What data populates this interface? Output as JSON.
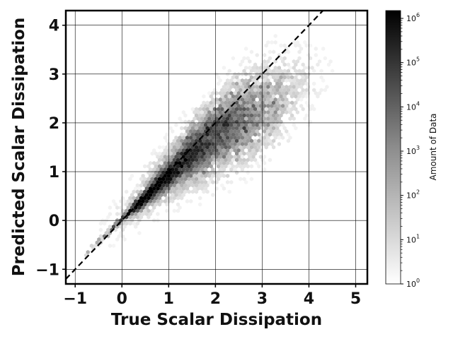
{
  "chart_data": {
    "type": "heatmap",
    "subtype": "hexbin",
    "title": "",
    "xlabel": "True Scalar Dissipation",
    "ylabel": "Predicted Scalar Dissipation",
    "xlim": [
      -1.2,
      5.25
    ],
    "ylim": [
      -1.3,
      4.3
    ],
    "xticks": [
      -1,
      0,
      1,
      2,
      3,
      4,
      5
    ],
    "yticks": [
      -1,
      0,
      1,
      2,
      3,
      4
    ],
    "x_tick_labels": [
      "−1",
      "0",
      "1",
      "2",
      "3",
      "4",
      "5"
    ],
    "y_tick_labels": [
      "−1",
      "0",
      "1",
      "2",
      "3",
      "4"
    ],
    "grid": true,
    "reference_line": {
      "style": "dashed",
      "color": "#000000",
      "slope": 1,
      "intercept": 0
    },
    "colorbar": {
      "label": "Amount of Data",
      "scale": "log",
      "range": [
        1,
        1500000
      ],
      "ticks": [
        {
          "base": "10",
          "exp": "0"
        },
        {
          "base": "10",
          "exp": "1"
        },
        {
          "base": "10",
          "exp": "2"
        },
        {
          "base": "10",
          "exp": "3"
        },
        {
          "base": "10",
          "exp": "4"
        },
        {
          "base": "10",
          "exp": "5"
        },
        {
          "base": "10",
          "exp": "6"
        }
      ],
      "colormap": "gray_r"
    },
    "density_estimate": {
      "description_of_values": "approximate count per hexbin; dense core along y = x from about -0.7 to 1, broad spread from 1 to 3",
      "core_counts_max": 1000000
    }
  }
}
